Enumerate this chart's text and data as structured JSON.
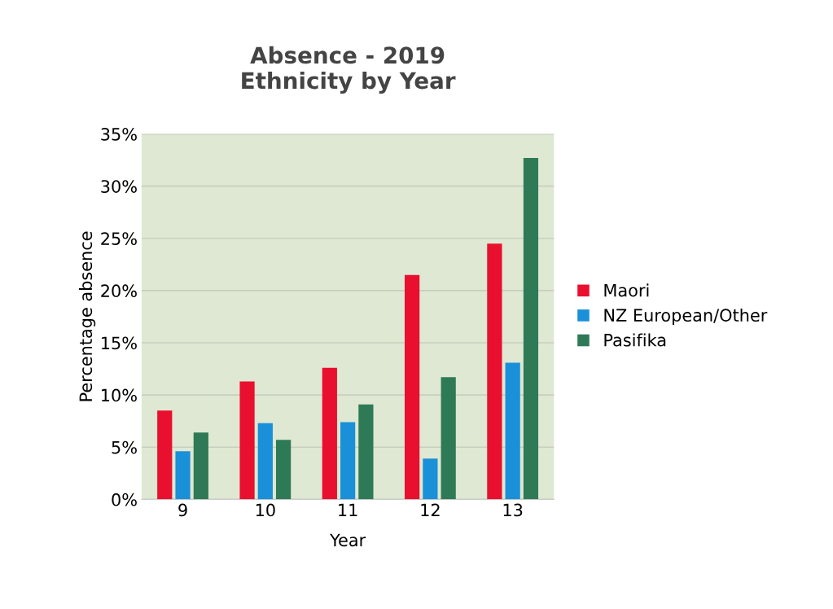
{
  "chart_data": {
    "type": "bar",
    "title": "Absence - 2019\nEthnicity by Year",
    "xlabel": "Year",
    "ylabel": "Percentage absence",
    "categories": [
      "9",
      "10",
      "11",
      "12",
      "13"
    ],
    "series": [
      {
        "name": "Maori",
        "color": "#e8102e",
        "values": [
          8.5,
          11.3,
          12.6,
          21.5,
          24.5
        ]
      },
      {
        "name": "NZ European/Other",
        "color": "#1a90d8",
        "values": [
          4.6,
          7.3,
          7.4,
          3.9,
          13.1
        ]
      },
      {
        "name": "Pasifika",
        "color": "#2e7a56",
        "values": [
          6.4,
          5.7,
          9.1,
          11.7,
          32.7
        ]
      }
    ],
    "ylim": [
      0,
      35
    ],
    "yticks": [
      {
        "value": 0,
        "label": "0%"
      },
      {
        "value": 5,
        "label": "5%"
      },
      {
        "value": 10,
        "label": "10%"
      },
      {
        "value": 15,
        "label": "15%"
      },
      {
        "value": 20,
        "label": "20%"
      },
      {
        "value": 25,
        "label": "25%"
      },
      {
        "value": 30,
        "label": "30%"
      },
      {
        "value": 35,
        "label": "35%"
      }
    ],
    "grid": "y",
    "legend": "right"
  }
}
